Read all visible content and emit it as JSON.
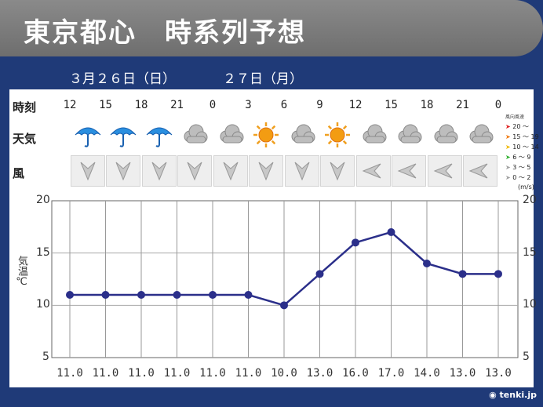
{
  "title": "東京都心　時系列予想",
  "dates": {
    "day1": "３月２６日（日）",
    "day2": "２７日（月）"
  },
  "labels": {
    "time": "時刻",
    "weather": "天気",
    "wind": "風",
    "temp_axis": "気温℃"
  },
  "hours": [
    "12",
    "15",
    "18",
    "21",
    "0",
    "3",
    "6",
    "9",
    "12",
    "15",
    "18",
    "21",
    "0"
  ],
  "weather_icons": [
    "umbrella-icon",
    "umbrella-icon",
    "umbrella-icon",
    "cloud-icon",
    "cloud-icon",
    "sun-icon",
    "cloud-icon",
    "sun-icon",
    "cloud-icon",
    "cloud-icon",
    "cloud-icon",
    "cloud-icon"
  ],
  "wind_icons": [
    "arrow-down-icon",
    "arrow-down-icon",
    "arrow-down-icon",
    "arrow-down-icon",
    "arrow-down-icon",
    "arrow-down-icon",
    "arrow-down-icon",
    "arrow-down-icon",
    "arrow-left-icon",
    "arrow-left-icon",
    "arrow-left-icon",
    "arrow-left-icon"
  ],
  "legend": {
    "title": "風向風速",
    "items": [
      {
        "label": "20 ～",
        "color": "#e02020"
      },
      {
        "label": "15 ～ 19",
        "color": "#f07a10"
      },
      {
        "label": "10 ～ 14",
        "color": "#f0b800"
      },
      {
        "label": "6 ～ 9",
        "color": "#30b030"
      },
      {
        "label": "3 ～ 5",
        "color": "#a0a0a0"
      },
      {
        "label": "0 ～ 2",
        "color": "#a0a0a0"
      }
    ],
    "unit": "(m/s)"
  },
  "chart_data": {
    "type": "line",
    "x": [
      "11.0",
      "11.0",
      "11.0",
      "11.0",
      "11.0",
      "11.0",
      "10.0",
      "13.0",
      "16.0",
      "17.0",
      "14.0",
      "13.0",
      "13.0"
    ],
    "values": [
      11,
      11,
      11,
      11,
      11,
      11,
      10,
      13,
      16,
      17,
      14,
      13,
      13
    ],
    "value_labels": [
      "11.0",
      "11.0",
      "11.0",
      "11.0",
      "11.0",
      "11.0",
      "10.0",
      "13.0",
      "16.0",
      "17.0",
      "14.0",
      "13.0",
      "13.0"
    ],
    "ylim": [
      5,
      20
    ],
    "yticks": [
      "20",
      "15",
      "10",
      "5"
    ],
    "ylabel": "気温℃",
    "grid": true,
    "line_color": "#2b2f8a"
  },
  "logo": "tenki.jp"
}
